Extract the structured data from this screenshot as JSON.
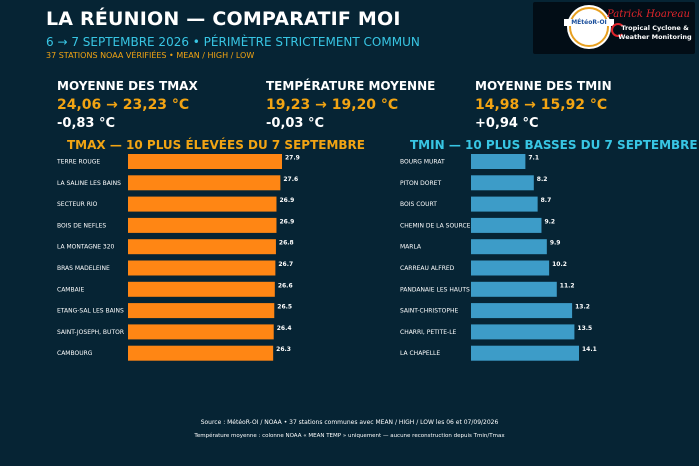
{
  "header": {
    "title": "LA RÉUNION — COMPARATIF MOI",
    "subtitle": "6 → 7 SEPTEMBRE 2026 • PÉRIMÈTRE STRICTEMENT COMMUN",
    "subtitle2": "37 STATIONS NOAA VÉRIFIÉES • MEAN / HIGH / LOW"
  },
  "logo": {
    "meteo": "MÉtéoR-OI",
    "name": "Patrick Hoareau",
    "tagline_1": "Tropical Cyclone &",
    "tagline_2": "Weather Monitoring",
    "colors": {
      "name": "#e0252b",
      "ring": "#e8a020"
    }
  },
  "stats": [
    {
      "label": "MOYENNE DES TMAX",
      "range": "24,06 → 23,23 °C",
      "delta": "-0,83 °C"
    },
    {
      "label": "TEMPÉRATURE MOYENNE",
      "range": "19,23 → 19,20 °C",
      "delta": "-0,03 °C"
    },
    {
      "label": "MOYENNE DES TMIN",
      "range": "14,98 → 15,92 °C",
      "delta": "+0,94 °C"
    }
  ],
  "chart_data": [
    {
      "type": "bar",
      "orientation": "horizontal",
      "title": "TMAX — 10 PLUS ÉLEVÉES DU 7 SEPTEMBRE",
      "color": "#ff8614",
      "categories": [
        "TERRE ROUGE",
        "LA SALINE LES BAINS",
        "SECTEUR RIO",
        "BOIS DE NEFLES",
        "LA MONTAGNE 320",
        "BRAS MADELEINE",
        "CAMBAIE",
        "ETANG-SAL LES BAINS",
        "SAINT-JOSEPH, BUTOR",
        "CAMBOURG"
      ],
      "values": [
        27.9,
        27.6,
        26.9,
        26.9,
        26.8,
        26.7,
        26.6,
        26.5,
        26.4,
        26.3
      ],
      "xlim": [
        0,
        27.9
      ]
    },
    {
      "type": "bar",
      "orientation": "horizontal",
      "title": "TMIN — 10 PLUS BASSES DU 7 SEPTEMBRE",
      "color": "#3d9cc8",
      "categories": [
        "BOURG MURAT",
        "PITON DORET",
        "BOIS COURT",
        "CHEMIN DE LA SOURCE",
        "MARLA",
        "CARREAU ALFRED",
        "PANDANAIE LES HAUTS D",
        "SAINT-CHRISTOPHE",
        "CHARRI, PETITE-LE",
        "LA CHAPELLE"
      ],
      "values": [
        7.1,
        8.2,
        8.7,
        9.2,
        9.9,
        10.2,
        11.2,
        13.2,
        13.5,
        14.1
      ],
      "xlim": [
        0,
        14.1
      ]
    }
  ],
  "footer": {
    "line1": "Source : MétéoR-OI / NOAA • 37 stations communes avec MEAN / HIGH / LOW les 06 et 07/09/2026",
    "line2": "Température moyenne : colonne NOAA « MEAN TEMP » uniquement — aucune reconstruction depuis Tmin/Tmax"
  }
}
